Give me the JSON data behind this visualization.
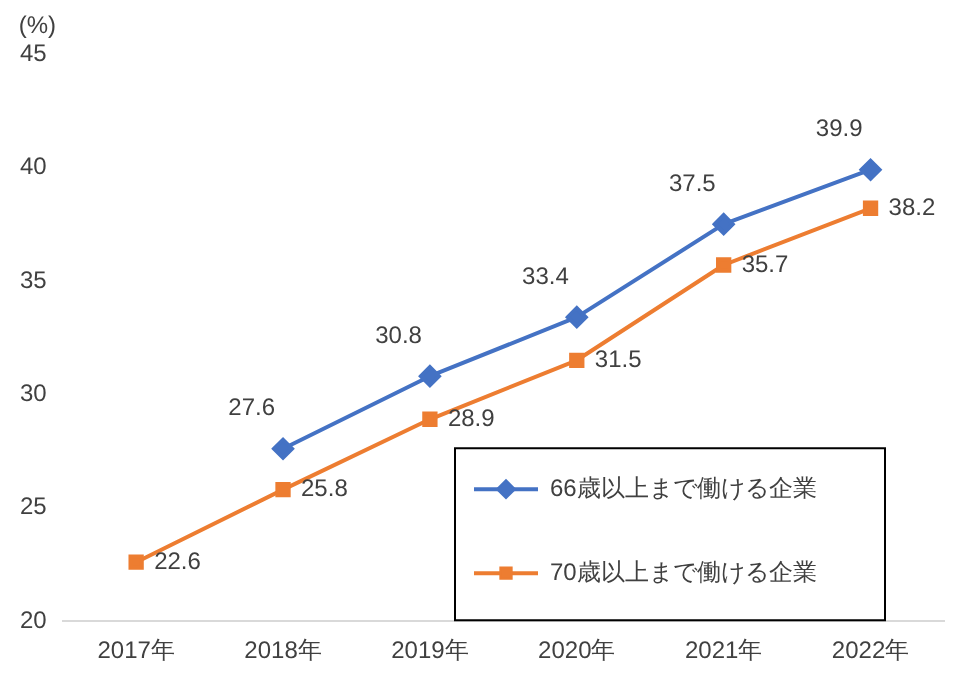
{
  "chart_data": {
    "type": "line",
    "ylabel": "(%)",
    "categories": [
      "2017年",
      "2018年",
      "2019年",
      "2020年",
      "2021年",
      "2022年"
    ],
    "series": [
      {
        "name": "66歳以上まで働ける企業",
        "color": "#4472c4",
        "marker": "diamond",
        "values": [
          null,
          27.6,
          30.8,
          33.4,
          37.5,
          39.9
        ]
      },
      {
        "name": "70歳以上まで働ける企業",
        "color": "#ed7d31",
        "marker": "square",
        "values": [
          22.6,
          25.8,
          28.9,
          31.5,
          35.7,
          38.2
        ]
      }
    ],
    "ylim": [
      20,
      45
    ],
    "yticks": [
      20,
      25,
      30,
      35,
      40,
      45
    ],
    "grid": false,
    "legend": "bottom right",
    "data_labels": true
  }
}
